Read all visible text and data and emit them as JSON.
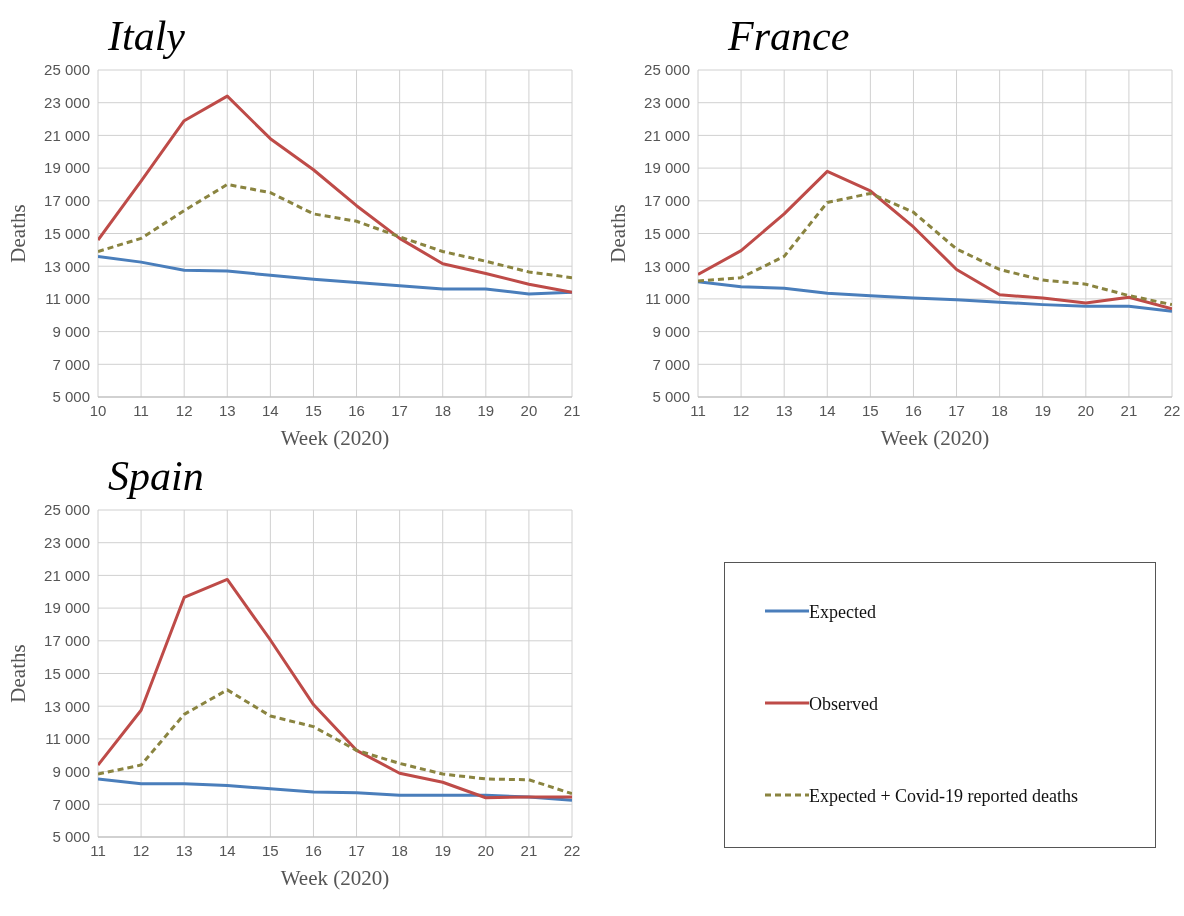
{
  "chart_data": [
    {
      "type": "line",
      "title": "Italy",
      "xlabel": "Week (2020)",
      "ylabel": "Deaths",
      "x": [
        10,
        11,
        12,
        13,
        14,
        15,
        16,
        17,
        18,
        19,
        20,
        21
      ],
      "xlim": [
        10,
        21
      ],
      "xticks": [
        10,
        11,
        12,
        13,
        14,
        15,
        16,
        17,
        18,
        19,
        20,
        21
      ],
      "ylim": [
        5000,
        25000
      ],
      "yticks": [
        {
          "value": 5000,
          "label": "5 000"
        },
        {
          "value": 7000,
          "label": "7 000"
        },
        {
          "value": 9000,
          "label": "9 000"
        },
        {
          "value": 11000,
          "label": "11 000"
        },
        {
          "value": 13000,
          "label": "13 000"
        },
        {
          "value": 15000,
          "label": "15 000"
        },
        {
          "value": 17000,
          "label": "17 000"
        },
        {
          "value": 19000,
          "label": "19 000"
        },
        {
          "value": 21000,
          "label": "21 000"
        },
        {
          "value": 23000,
          "label": "23 000"
        },
        {
          "value": 25000,
          "label": "25 000"
        }
      ],
      "grid": true,
      "marker": "none",
      "series": [
        {
          "color": "#4a7ebb",
          "line_style": "solid",
          "values": [
            13600,
            13250,
            12750,
            12700,
            12450,
            12200,
            12000,
            11800,
            11600,
            11600,
            11300,
            11400
          ]
        },
        {
          "color": "#be4b48",
          "line_style": "solid",
          "values": [
            14600,
            18200,
            21900,
            23400,
            20800,
            18900,
            16700,
            14700,
            13150,
            12550,
            11900,
            11400
          ]
        },
        {
          "color": "#8a8440",
          "line_style": "dashed",
          "values": [
            13900,
            14700,
            16400,
            18000,
            17500,
            16200,
            15750,
            14800,
            13900,
            13300,
            12650,
            12300
          ]
        }
      ]
    },
    {
      "type": "line",
      "title": "France",
      "xlabel": "Week (2020)",
      "ylabel": "Deaths",
      "x": [
        11,
        12,
        13,
        14,
        15,
        16,
        17,
        18,
        19,
        20,
        21,
        22
      ],
      "xlim": [
        11,
        22
      ],
      "xticks": [
        11,
        12,
        13,
        14,
        15,
        16,
        17,
        18,
        19,
        20,
        21,
        22
      ],
      "ylim": [
        5000,
        25000
      ],
      "yticks": [
        {
          "value": 5000,
          "label": "5 000"
        },
        {
          "value": 7000,
          "label": "7 000"
        },
        {
          "value": 9000,
          "label": "9 000"
        },
        {
          "value": 11000,
          "label": "11 000"
        },
        {
          "value": 13000,
          "label": "13 000"
        },
        {
          "value": 15000,
          "label": "15 000"
        },
        {
          "value": 17000,
          "label": "17 000"
        },
        {
          "value": 19000,
          "label": "19 000"
        },
        {
          "value": 21000,
          "label": "21 000"
        },
        {
          "value": 23000,
          "label": "23 000"
        },
        {
          "value": 25000,
          "label": "25 000"
        }
      ],
      "grid": true,
      "marker": "none",
      "series": [
        {
          "color": "#4a7ebb",
          "line_style": "solid",
          "values": [
            12050,
            11750,
            11650,
            11350,
            11200,
            11050,
            10950,
            10800,
            10650,
            10550,
            10550,
            10250
          ]
        },
        {
          "color": "#be4b48",
          "line_style": "solid",
          "values": [
            12500,
            13950,
            16200,
            18800,
            17600,
            15400,
            12800,
            11250,
            11050,
            10750,
            11100,
            10400
          ]
        },
        {
          "color": "#8a8440",
          "line_style": "dashed",
          "values": [
            12100,
            12300,
            13600,
            16900,
            17450,
            16300,
            14050,
            12800,
            12150,
            11900,
            11200,
            10650
          ]
        }
      ]
    },
    {
      "type": "line",
      "title": "Spain",
      "xlabel": "Week (2020)",
      "ylabel": "Deaths",
      "x": [
        11,
        12,
        13,
        14,
        15,
        16,
        17,
        18,
        19,
        20,
        21,
        22
      ],
      "xlim": [
        11,
        22
      ],
      "xticks": [
        11,
        12,
        13,
        14,
        15,
        16,
        17,
        18,
        19,
        20,
        21,
        22
      ],
      "ylim": [
        5000,
        25000
      ],
      "yticks": [
        {
          "value": 5000,
          "label": "5 000"
        },
        {
          "value": 7000,
          "label": "7 000"
        },
        {
          "value": 9000,
          "label": "9 000"
        },
        {
          "value": 11000,
          "label": "11 000"
        },
        {
          "value": 13000,
          "label": "13 000"
        },
        {
          "value": 15000,
          "label": "15 000"
        },
        {
          "value": 17000,
          "label": "17 000"
        },
        {
          "value": 19000,
          "label": "19 000"
        },
        {
          "value": 21000,
          "label": "21 000"
        },
        {
          "value": 23000,
          "label": "23 000"
        },
        {
          "value": 25000,
          "label": "25 000"
        }
      ],
      "grid": true,
      "marker": "none",
      "legend": "right",
      "series": [
        {
          "name": "Expected",
          "color": "#4a7ebb",
          "line_style": "solid",
          "values": [
            8550,
            8250,
            8250,
            8150,
            7950,
            7750,
            7700,
            7550,
            7550,
            7550,
            7450,
            7250
          ]
        },
        {
          "name": "Observed",
          "color": "#be4b48",
          "line_style": "solid",
          "values": [
            9400,
            12750,
            19650,
            20750,
            17050,
            13100,
            10300,
            8900,
            8350,
            7400,
            7450,
            7450
          ]
        },
        {
          "name": "Expected + Covid-19 reported deaths",
          "color": "#8a8440",
          "line_style": "dashed",
          "values": [
            8850,
            9400,
            12500,
            14000,
            12400,
            11750,
            10300,
            9500,
            8850,
            8550,
            8500,
            7650
          ]
        }
      ]
    }
  ]
}
